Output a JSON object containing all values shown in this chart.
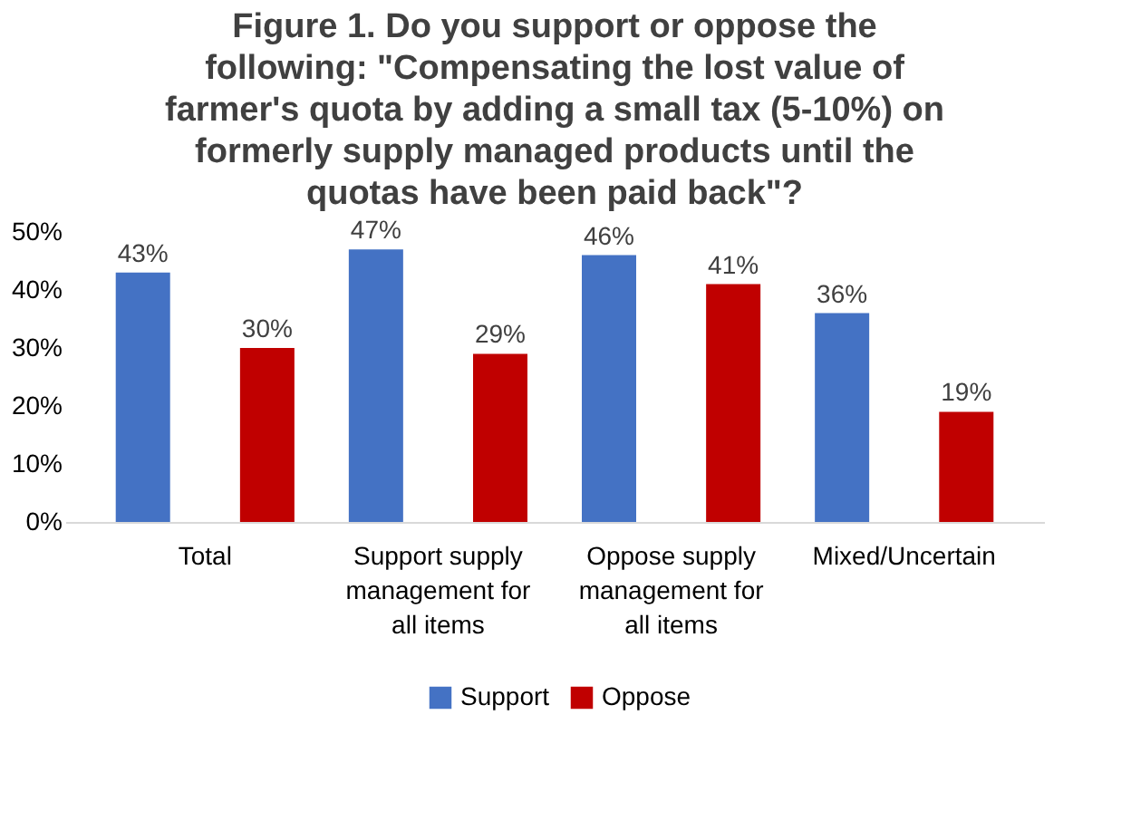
{
  "chart_data": {
    "type": "bar",
    "title": "Figure 1. Do you support or oppose the following: \"Compensating the lost value of farmer's quota by adding a small tax (5-10%) on formerly supply managed products until the quotas have been paid back\"?",
    "categories": [
      "Total",
      "Support supply management for all items",
      "Oppose supply management for all items",
      "Mixed/Uncertain"
    ],
    "series": [
      {
        "name": "Support",
        "color": "#4472c4",
        "values": [
          43,
          47,
          46,
          36
        ],
        "value_labels": [
          "43%",
          "47%",
          "46%",
          "36%"
        ]
      },
      {
        "name": "Oppose",
        "color": "#c00000",
        "values": [
          30,
          29,
          41,
          19
        ],
        "value_labels": [
          "30%",
          "29%",
          "41%",
          "19%"
        ]
      }
    ],
    "ylim": [
      0,
      50
    ],
    "yticks": [
      {
        "value": 0,
        "label": "0%"
      },
      {
        "value": 10,
        "label": "10%"
      },
      {
        "value": 20,
        "label": "20%"
      },
      {
        "value": 30,
        "label": "30%"
      },
      {
        "value": 40,
        "label": "40%"
      },
      {
        "value": 50,
        "label": "50%"
      }
    ],
    "grid": false,
    "legend": "bottom"
  }
}
